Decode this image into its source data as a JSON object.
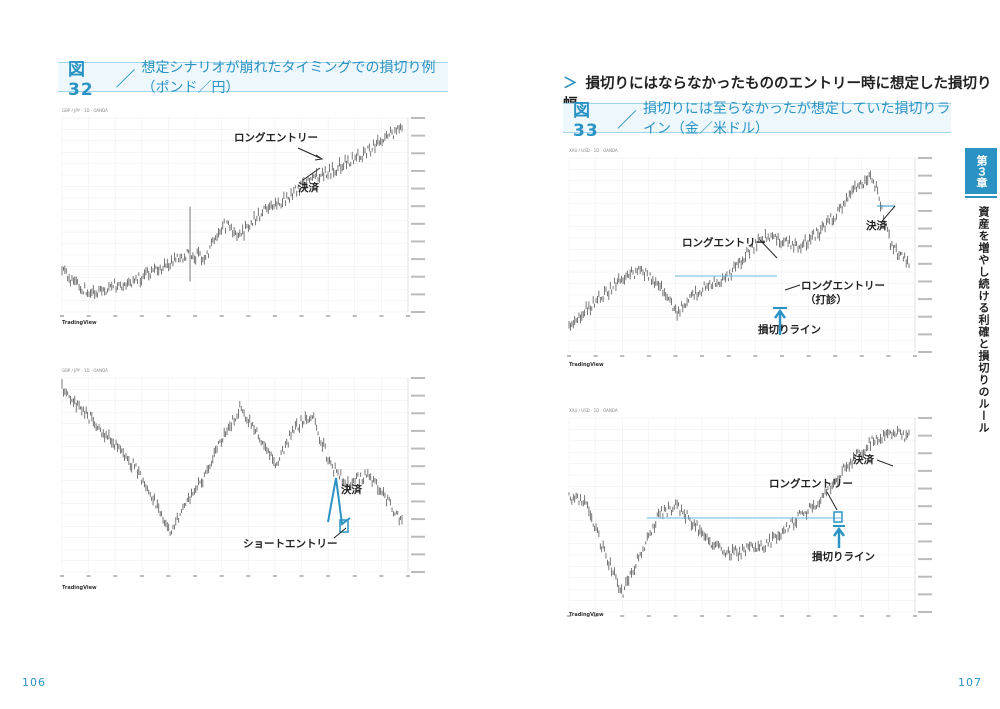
{
  "left_page": {
    "figure_title": {
      "num": "図 32",
      "sep": "／",
      "text": "想定シナリオが崩れたタイミングでの損切り例（ポンド／円）"
    },
    "chart1": {
      "meta": "GBP / JPY · 1D · OANDA",
      "brand": "TradingView",
      "annotations": {
        "long_entry": "ロングエントリー",
        "settle": "決済"
      }
    },
    "chart2": {
      "meta": "GBP / JPY · 1D · OANDA",
      "brand": "TradingView",
      "annotations": {
        "settle": "決済",
        "short_entry": "ショートエントリー"
      }
    },
    "page_number": "106"
  },
  "right_page": {
    "section_heading": {
      "chevron": "＞",
      "text": "損切りにはならなかったもののエントリー時に想定した損切り幅"
    },
    "figure_title": {
      "num": "図 33",
      "sep": "／",
      "text": "損切りには至らなかったが想定していた損切りライン（金／米ドル）"
    },
    "chart1": {
      "meta": "XAU / USD · 1D · OANDA",
      "brand": "TradingView",
      "annotations": {
        "long_entry": "ロングエントリー",
        "long_entry_probe": "ロングエントリー",
        "probe_note": "（打診）",
        "settle": "決済",
        "stop_line": "損切りライン"
      }
    },
    "chart2": {
      "meta": "XAU / USD · 1D · OANDA",
      "brand": "TradingView",
      "annotations": {
        "long_entry": "ロングエントリー",
        "settle": "決済",
        "stop_line": "損切りライン"
      }
    },
    "page_number": "107"
  },
  "side_tab": {
    "chapter": "第３章",
    "title": "資産を増やし続ける利確と損切りのルール"
  },
  "colors": {
    "accent": "#2a93c4",
    "title_bg": "#eef8fc",
    "candle": "#555555",
    "grid": "#ececec"
  }
}
